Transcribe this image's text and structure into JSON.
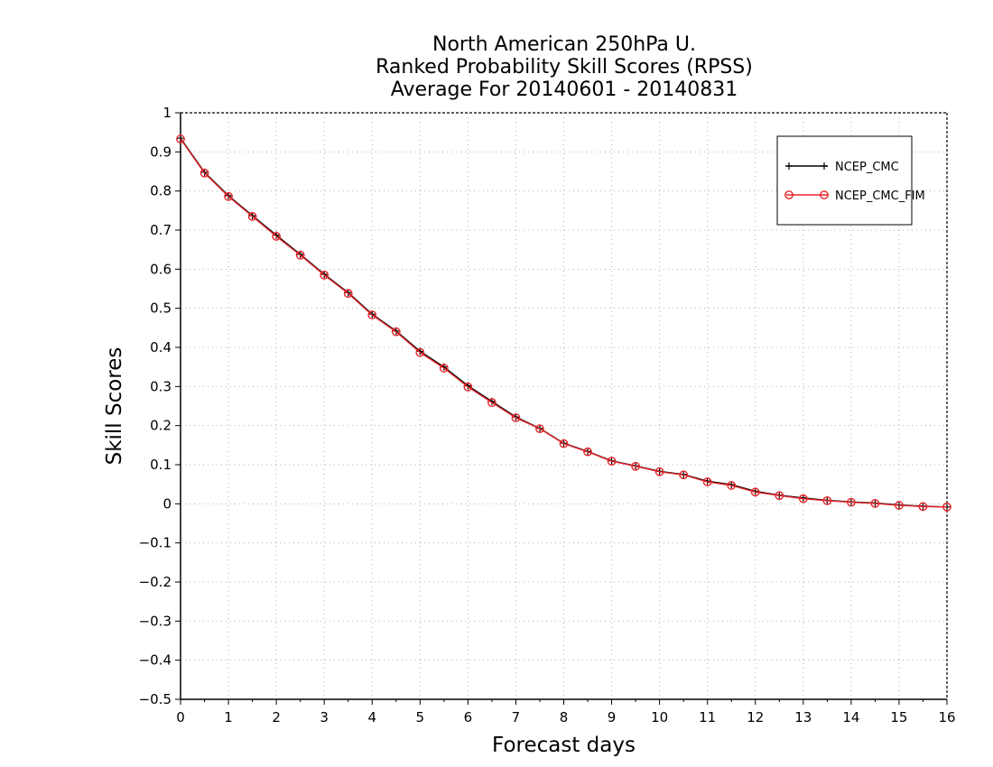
{
  "chart_data": {
    "type": "line",
    "title": [
      "North American 250hPa U.",
      "Ranked Probability Skill Scores (RPSS)",
      "Average For 20140601 - 20140831"
    ],
    "xlabel": "Forecast days",
    "ylabel": "Skill Scores",
    "xlim": [
      0,
      16
    ],
    "ylim": [
      -0.5,
      1
    ],
    "xticks": [
      0,
      1,
      2,
      3,
      4,
      5,
      6,
      7,
      8,
      9,
      10,
      11,
      12,
      13,
      14,
      15,
      16
    ],
    "yticks": [
      "−0.5",
      "−0.4",
      "−0.3",
      "−0.2",
      "−0.1",
      "0",
      "0.1",
      "0.2",
      "0.3",
      "0.4",
      "0.5",
      "0.6",
      "0.7",
      "0.8",
      "0.9",
      "1"
    ],
    "grid": true,
    "legend_position": "top-right",
    "x": [
      0,
      0.5,
      1,
      1.5,
      2,
      2.5,
      3,
      3.5,
      4,
      4.5,
      5,
      5.5,
      6,
      6.5,
      7,
      7.5,
      8,
      8.5,
      9,
      9.5,
      10,
      10.5,
      11,
      11.5,
      12,
      12.5,
      13,
      13.5,
      14,
      14.5,
      15,
      15.5,
      16
    ],
    "series": [
      {
        "name": "NCEP_CMC",
        "color": "#000000",
        "marker": "plus",
        "values": [
          0.935,
          0.848,
          0.788,
          0.737,
          0.687,
          0.638,
          0.587,
          0.54,
          0.485,
          0.442,
          0.39,
          0.35,
          0.302,
          0.262,
          0.222,
          0.193,
          0.155,
          0.134,
          0.11,
          0.097,
          0.083,
          0.075,
          0.058,
          0.049,
          0.032,
          0.022,
          0.015,
          0.009,
          0.005,
          0.002,
          -0.003,
          -0.006,
          -0.008
        ]
      },
      {
        "name": "NCEP_CMC_FIM",
        "color": "#e8262b",
        "marker": "circle",
        "values": [
          0.933,
          0.846,
          0.786,
          0.735,
          0.684,
          0.636,
          0.585,
          0.538,
          0.483,
          0.44,
          0.387,
          0.347,
          0.299,
          0.259,
          0.22,
          0.192,
          0.154,
          0.133,
          0.109,
          0.096,
          0.082,
          0.074,
          0.056,
          0.047,
          0.03,
          0.021,
          0.013,
          0.008,
          0.004,
          0.001,
          -0.004,
          -0.007,
          -0.008
        ]
      }
    ]
  }
}
